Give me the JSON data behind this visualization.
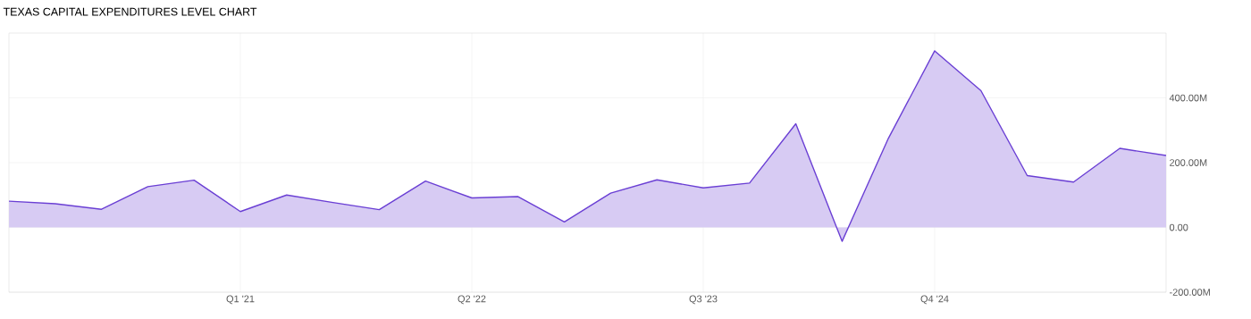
{
  "chart_data": {
    "type": "area",
    "title": "TEXAS CAPITAL EXPENDITURES LEVEL CHART",
    "categories": [
      null,
      null,
      null,
      null,
      null,
      "Q1 '21",
      null,
      null,
      null,
      null,
      "Q2 '22",
      null,
      null,
      null,
      null,
      "Q3 '23",
      null,
      null,
      null,
      null,
      "Q4 '24",
      null,
      null,
      null,
      null,
      null
    ],
    "series": [
      {
        "color": "#6a3fd4",
        "values": [
          81,
          73,
          56,
          126,
          146,
          49,
          100,
          77,
          55,
          143,
          91,
          95,
          17,
          106,
          147,
          122,
          137,
          320,
          -43,
          275,
          545,
          422,
          160,
          140,
          244,
          222
        ]
      }
    ],
    "ylim": [
      -200,
      600
    ],
    "yticks": [
      {
        "value": -200,
        "label": "-200.00M"
      },
      {
        "value": 0,
        "label": "0.00"
      },
      {
        "value": 200,
        "label": "200.00M"
      },
      {
        "value": 400,
        "label": "400.00M"
      }
    ],
    "grid": true
  }
}
